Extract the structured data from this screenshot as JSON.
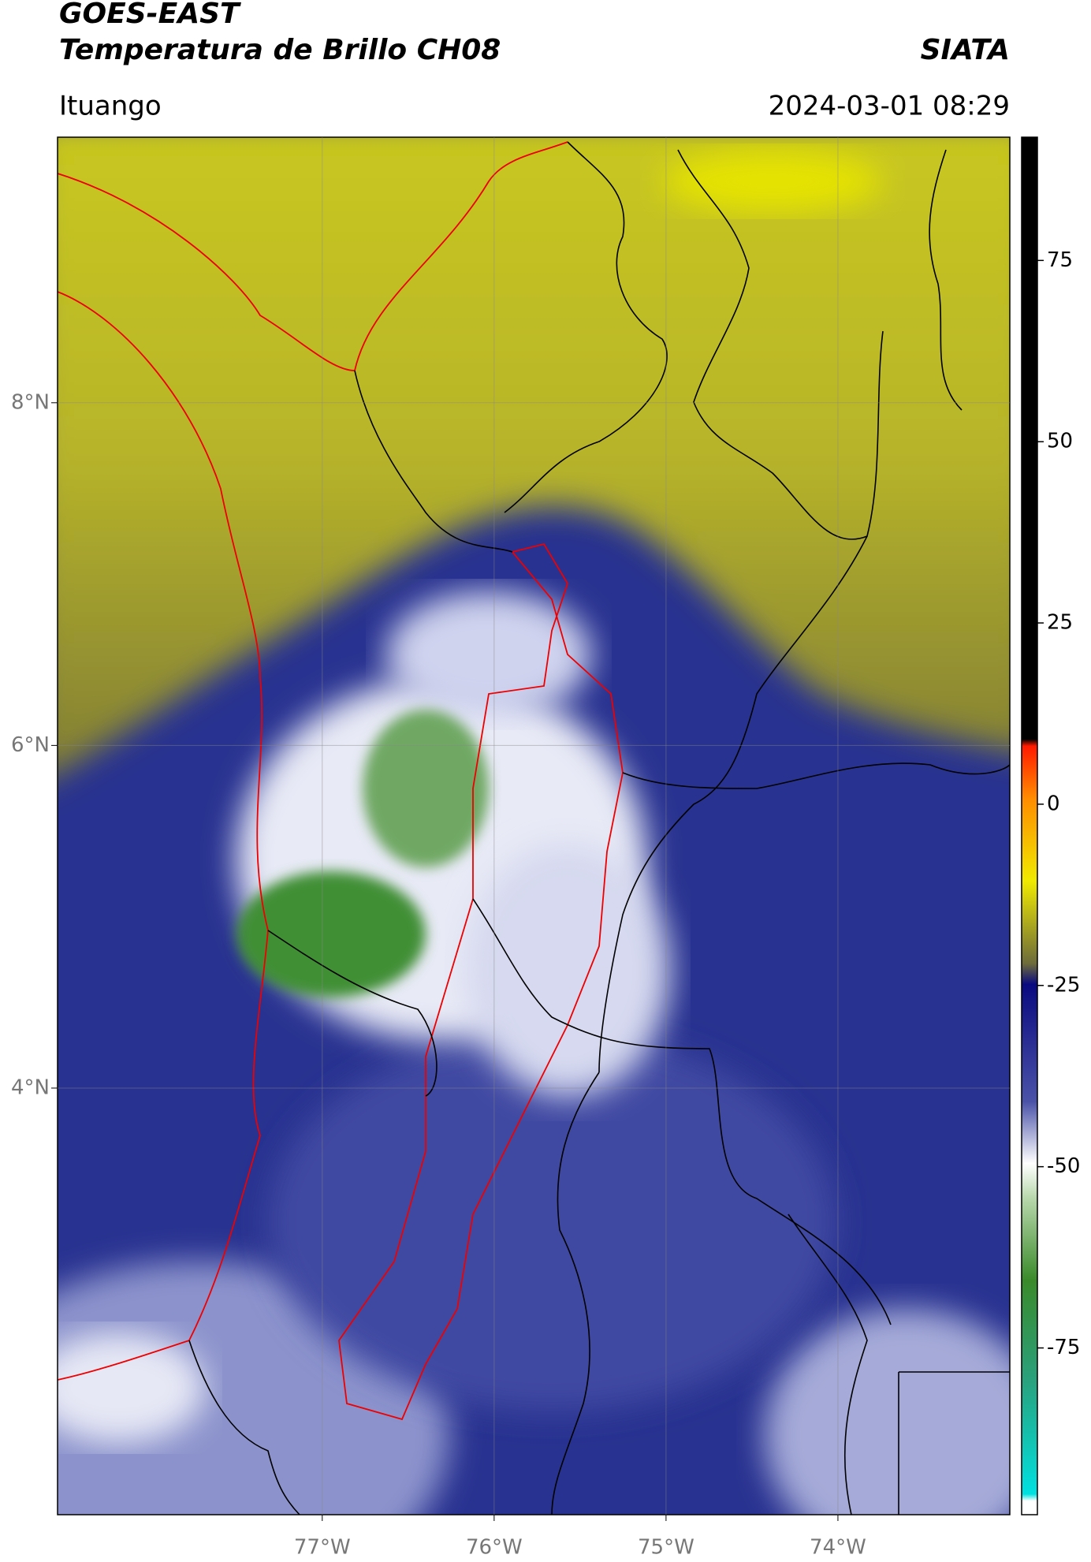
{
  "header": {
    "title": "GOES-EAST",
    "subtitle": "Temperatura de Brillo CH08",
    "source": "SIATA",
    "location": "Ituango",
    "datetime": "2024-03-01 08:29"
  },
  "map": {
    "lonlim": [
      -78.54,
      -73.0
    ],
    "latlim": [
      1.51,
      9.55
    ],
    "lon_ticks": [
      {
        "value": -77,
        "label": "77°W"
      },
      {
        "value": -76,
        "label": "76°W"
      },
      {
        "value": -75,
        "label": "75°W"
      },
      {
        "value": -74,
        "label": "74°W"
      }
    ],
    "lat_ticks": [
      {
        "value": 8,
        "label": "8°N"
      },
      {
        "value": 6,
        "label": "6°N"
      },
      {
        "value": 4,
        "label": "4°N"
      }
    ],
    "grid": true
  },
  "colorbar": {
    "lim": [
      -98,
      92
    ],
    "ticks": [
      75,
      50,
      25,
      0,
      -25,
      -50,
      -75
    ]
  }
}
